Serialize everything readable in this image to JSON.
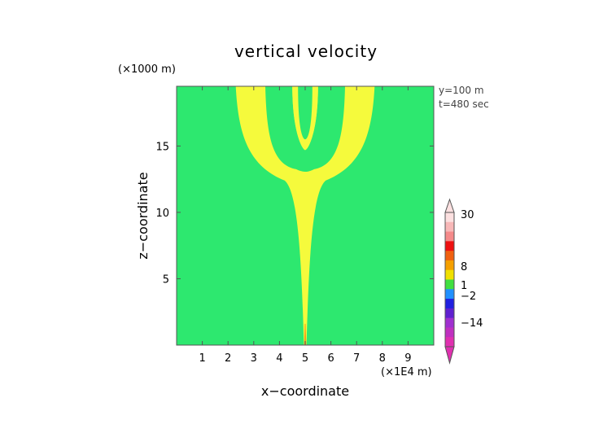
{
  "chart_data": {
    "type": "heatmap",
    "title": "vertical velocity",
    "xlabel": "x−coordinate",
    "ylabel": "z−coordinate",
    "x_unit": "(×1E4 m)",
    "y_unit": "(×1000 m)",
    "annotations": [
      "y=100 m",
      "t=480 sec"
    ],
    "xlim": [
      0,
      10
    ],
    "ylim": [
      0,
      19.5
    ],
    "xticks": [
      1,
      2,
      3,
      4,
      5,
      6,
      7,
      8,
      9
    ],
    "yticks": [
      5,
      10,
      15
    ],
    "background_color": "#2de86f",
    "fill_color": "#f5fa3c",
    "core_color": "#f0a020",
    "plume": {
      "stem_center_x": 5,
      "stem_base_z": 0,
      "outer_plume_x_at_top": [
        2.3,
        7.7
      ],
      "inner_gap_x_at_top": [
        4.5,
        5.5
      ],
      "inner_gap_bottom_z": 14.7,
      "arch_z": 13.2
    },
    "colorbar": {
      "tick_labels": [
        "30",
        "8",
        "1",
        "−2",
        "−14"
      ],
      "tick_values": [
        30,
        8,
        1,
        -2,
        -14
      ],
      "colors": [
        "#fce0e0",
        "#f8b8b8",
        "#f58a8a",
        "#ee1010",
        "#f06010",
        "#f5a000",
        "#f0e000",
        "#40e040",
        "#2090ff",
        "#2020e0",
        "#6020d0",
        "#a030d0",
        "#c030c0",
        "#e030b0"
      ]
    }
  }
}
